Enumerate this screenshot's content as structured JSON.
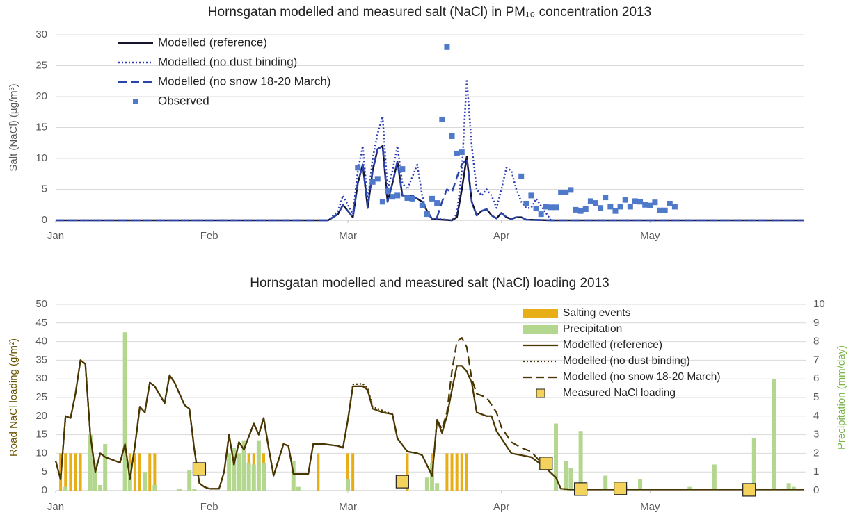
{
  "chart_data": [
    {
      "type": "line",
      "title": "Hornsgatan modelled and measured salt (NaCl) in PM₁₀ concentration 2013",
      "ylabel": "Salt (NaCl) (µg/m³)",
      "xlim": [
        0,
        151
      ],
      "xticks": [
        {
          "value": 0,
          "label": "Jan"
        },
        {
          "value": 31,
          "label": "Feb"
        },
        {
          "value": 59,
          "label": "Mar"
        },
        {
          "value": 90,
          "label": "Apr"
        },
        {
          "value": 120,
          "label": "May"
        }
      ],
      "ylim": [
        0,
        30
      ],
      "yticks": [
        0,
        5,
        10,
        15,
        20,
        25,
        30
      ],
      "grid": true,
      "legend": "upper left",
      "series": [
        {
          "name": "Modelled (reference)",
          "type": "line",
          "style": "solid",
          "color": "#14142e",
          "x": [
            0,
            55,
            57,
            58,
            60,
            61,
            62,
            63,
            64,
            65,
            66,
            67,
            68,
            69,
            70,
            71,
            72,
            73,
            74,
            75,
            76,
            80,
            81,
            82,
            83,
            84,
            85,
            86,
            87,
            88,
            89,
            90,
            91,
            92,
            93,
            94,
            95,
            100,
            151
          ],
          "values": [
            0,
            0,
            1,
            2.5,
            0.5,
            6,
            9,
            2,
            8,
            11.5,
            12,
            3,
            6,
            9.5,
            4,
            4,
            4,
            3.5,
            3,
            1.5,
            0.2,
            0,
            0.5,
            5,
            10.3,
            3,
            0.8,
            1.5,
            1.8,
            0.8,
            0.3,
            1.2,
            0.5,
            0.2,
            0.5,
            0.5,
            0.1,
            0,
            0
          ]
        },
        {
          "name": "Modelled (no dust binding)",
          "type": "line",
          "style": "dotted",
          "color": "#2f3db5",
          "x": [
            0,
            55,
            57,
            58,
            60,
            61,
            62,
            63,
            64,
            65,
            66,
            67,
            68,
            69,
            70,
            71,
            72,
            73,
            74,
            75,
            76,
            80,
            81,
            82,
            83,
            84,
            85,
            86,
            87,
            88,
            89,
            90,
            91,
            92,
            93,
            94,
            95,
            96,
            97,
            100,
            151
          ],
          "values": [
            0,
            0,
            1.5,
            4,
            1,
            8,
            12,
            3,
            10,
            14,
            16.8,
            5,
            8,
            12,
            6,
            5,
            7,
            9,
            4,
            1,
            0.3,
            0,
            1,
            8,
            22.8,
            12,
            5,
            4,
            5,
            4,
            2,
            5,
            8.5,
            8,
            5,
            3,
            2,
            2,
            3.5,
            0,
            0
          ]
        },
        {
          "name": "Modelled (no snow 18-20 March)",
          "type": "line",
          "style": "dashed",
          "color": "#2a44a8",
          "x": [
            0,
            55,
            57,
            58,
            60,
            61,
            62,
            63,
            64,
            65,
            66,
            67,
            68,
            69,
            70,
            71,
            72,
            73,
            74,
            75,
            76,
            77,
            78,
            79,
            80,
            81,
            82,
            83,
            84,
            85,
            86,
            87,
            88,
            89,
            90,
            91,
            92,
            93,
            94,
            95,
            100,
            151
          ],
          "values": [
            0,
            0,
            1,
            2.5,
            0.5,
            6,
            9,
            2,
            8,
            11.5,
            12,
            3,
            6,
            9.5,
            4,
            4,
            4,
            3.5,
            3,
            1.5,
            0.2,
            0.5,
            3,
            5,
            4.5,
            7,
            9,
            10,
            3,
            0.8,
            1.5,
            1.8,
            0.8,
            0.3,
            1.2,
            0.5,
            0.2,
            0.5,
            0.5,
            0.1,
            0,
            0
          ]
        },
        {
          "name": "Observed",
          "type": "scatter",
          "color": "#4f79c9",
          "x": [
            61,
            64,
            65,
            66,
            67,
            68,
            69,
            70,
            71,
            72,
            74,
            75,
            76,
            77,
            78,
            79,
            80,
            81,
            82,
            94,
            95,
            96,
            97,
            98,
            99,
            100,
            101,
            102,
            103,
            104,
            105,
            106,
            107,
            108,
            109,
            110,
            111,
            112,
            113,
            114,
            115,
            116,
            117,
            118,
            119,
            120,
            121,
            122,
            123,
            124,
            125
          ],
          "values": [
            8.5,
            6.2,
            6.7,
            3,
            4.7,
            3.8,
            4,
            8.3,
            3.6,
            3.5,
            2.4,
            1,
            3.5,
            2.8,
            16.3,
            28,
            13.6,
            10.8,
            11,
            7.1,
            2.7,
            4,
            1.9,
            1,
            2.2,
            2.1,
            2.1,
            4.5,
            4.5,
            4.9,
            1.7,
            1.5,
            1.8,
            3.1,
            2.8,
            2,
            3.7,
            2.2,
            1.5,
            2.2,
            3.3,
            2.2,
            3.1,
            3,
            2.5,
            2.4,
            2.9,
            1.6,
            1.6,
            2.7,
            2.2
          ]
        }
      ]
    },
    {
      "type": "combo",
      "title": "Hornsgatan modelled and measured salt (NaCl) loading 2013",
      "ylabel": "Road NaCl loading (g/m²)",
      "ylabel_color": "#6b5300",
      "y2label": "Precipitation (mm/day)",
      "y2label_color": "#7ab648",
      "xlim": [
        0,
        151
      ],
      "xticks": [
        {
          "value": 0,
          "label": "Jan"
        },
        {
          "value": 31,
          "label": "Feb"
        },
        {
          "value": 59,
          "label": "Mar"
        },
        {
          "value": 90,
          "label": "Apr"
        },
        {
          "value": 120,
          "label": "May"
        }
      ],
      "ylim": [
        0,
        50
      ],
      "yticks": [
        0,
        5,
        10,
        15,
        20,
        25,
        30,
        35,
        40,
        45,
        50
      ],
      "y2lim": [
        0,
        10
      ],
      "y2ticks": [
        0,
        1,
        2,
        3,
        4,
        5,
        6,
        7,
        8,
        9,
        10
      ],
      "grid": true,
      "legend": "upper right",
      "series": [
        {
          "name": "Salting events",
          "type": "bar",
          "color": "#e8ae17",
          "x": [
            1,
            2,
            3,
            4,
            5,
            7,
            10,
            14,
            15,
            16,
            17,
            19,
            20,
            35,
            37,
            38,
            39,
            40,
            41,
            42,
            53,
            59,
            60,
            71,
            76,
            79,
            80,
            81,
            82,
            83
          ],
          "values": [
            10,
            10,
            10,
            10,
            10,
            10,
            10,
            10,
            10,
            10,
            10,
            10,
            10,
            10,
            10,
            10,
            10,
            10,
            10,
            10,
            10,
            10,
            10,
            10,
            10,
            10,
            10,
            10,
            10,
            10
          ]
        },
        {
          "name": "Precipitation",
          "type": "bar",
          "axis": "y2",
          "color": "#b3d78f",
          "x": [
            2,
            7,
            8,
            9,
            10,
            14,
            15,
            18,
            20,
            25,
            27,
            28,
            35,
            36,
            37,
            38,
            39,
            40,
            41,
            42,
            48,
            49,
            59,
            75,
            76,
            77,
            101,
            103,
            104,
            106,
            111,
            115,
            118,
            128,
            133,
            141,
            145,
            148,
            149
          ],
          "values": [
            0.2,
            3,
            1.5,
            0.3,
            2.5,
            8.5,
            1.5,
            1,
            0.3,
            0.1,
            1.1,
            0.1,
            2,
            2.3,
            2,
            2.7,
            1.5,
            1.4,
            2.7,
            1.5,
            1.6,
            0.2,
            0.6,
            0.7,
            1.5,
            0.4,
            3.6,
            1.6,
            1.2,
            3.2,
            0.8,
            0.2,
            0.6,
            0.2,
            1.4,
            2.8,
            6,
            0.4,
            0.2
          ]
        },
        {
          "name": "Modelled (reference)",
          "type": "line",
          "style": "solid",
          "color": "#4a3600",
          "x": [
            0,
            1,
            2,
            3,
            4,
            5,
            6,
            7,
            8,
            9,
            10,
            11,
            13,
            14,
            15,
            16,
            17,
            18,
            19,
            20,
            22,
            23,
            24,
            26,
            27,
            28,
            29,
            30,
            31,
            33,
            34,
            35,
            36,
            37,
            38,
            40,
            41,
            42,
            43,
            44,
            46,
            47,
            48,
            51,
            52,
            54,
            57,
            58,
            59,
            60,
            62,
            63,
            64,
            66,
            68,
            69,
            71,
            73,
            74,
            76,
            77,
            78,
            79,
            80,
            81,
            82,
            83,
            84,
            85,
            87,
            88,
            89,
            90,
            92,
            94,
            96,
            98,
            99,
            101,
            102,
            104,
            151
          ],
          "values": [
            8,
            3,
            20,
            19.5,
            26,
            35,
            34,
            15,
            5,
            10,
            9,
            8.5,
            7.5,
            12.5,
            3,
            12,
            22.5,
            21,
            29,
            28,
            23.5,
            31,
            29,
            23,
            22,
            11,
            2,
            1,
            0.5,
            0.5,
            5,
            15,
            7,
            13,
            11,
            18,
            15,
            19.5,
            11.5,
            4,
            12.5,
            12,
            4.5,
            4.5,
            12.5,
            12.5,
            12,
            11.5,
            19,
            28,
            28,
            27,
            22,
            21,
            20.5,
            14,
            10.5,
            10,
            9.5,
            4,
            19,
            15.5,
            20,
            27,
            33.5,
            33.5,
            32,
            29,
            21,
            20,
            20,
            16,
            14,
            10,
            9.5,
            9,
            7,
            6,
            3.5,
            0.5,
            0.3,
            0.3
          ]
        },
        {
          "name": "Modelled (no dust binding)",
          "type": "line",
          "style": "dotted",
          "color": "#4a3600",
          "x": [
            0,
            1,
            2,
            3,
            4,
            5,
            6,
            7,
            8,
            9,
            10,
            11,
            13,
            14,
            15,
            16,
            17,
            18,
            19,
            20,
            22,
            23,
            24,
            26,
            27,
            28,
            29,
            30,
            31,
            33,
            34,
            35,
            36,
            37,
            38,
            40,
            41,
            42,
            43,
            44,
            46,
            47,
            48,
            51,
            52,
            54,
            57,
            58,
            59,
            60,
            62,
            63,
            64,
            66,
            68,
            69,
            71,
            73,
            74,
            76,
            77,
            78,
            79,
            80,
            81,
            82,
            83,
            84,
            85,
            87,
            88,
            89,
            90,
            92,
            94,
            96,
            98,
            99,
            101,
            102,
            104,
            151
          ],
          "values": [
            8,
            3,
            20,
            19.5,
            26,
            35,
            34,
            15,
            5,
            10,
            9,
            8.5,
            7.5,
            12.5,
            3,
            12,
            22.5,
            21,
            29,
            28,
            23.5,
            31,
            29,
            23,
            22,
            11,
            2,
            1,
            0.5,
            0.5,
            5,
            15,
            7,
            13,
            11,
            18,
            15,
            19.5,
            11.5,
            4,
            12.5,
            12,
            4.5,
            4.5,
            12.5,
            12.5,
            12,
            11.5,
            19,
            28.5,
            28.7,
            27.5,
            22.5,
            21.5,
            20.5,
            14,
            10.5,
            10,
            9.5,
            4,
            19,
            15.5,
            20,
            27,
            33.5,
            33.5,
            32,
            29,
            21,
            20,
            20,
            16,
            14,
            10,
            9.5,
            9,
            7,
            6,
            3.5,
            0.5,
            0.3,
            0.3
          ]
        },
        {
          "name": "Modelled (no snow 18-20 March)",
          "type": "line",
          "style": "dashed",
          "color": "#4a3600",
          "x": [
            0,
            1,
            2,
            3,
            4,
            5,
            6,
            7,
            8,
            9,
            10,
            11,
            13,
            14,
            15,
            16,
            17,
            18,
            19,
            20,
            22,
            23,
            24,
            26,
            27,
            28,
            29,
            30,
            31,
            33,
            34,
            35,
            36,
            37,
            38,
            40,
            41,
            42,
            43,
            44,
            46,
            47,
            48,
            51,
            52,
            54,
            57,
            58,
            59,
            60,
            62,
            63,
            64,
            66,
            68,
            69,
            71,
            73,
            74,
            76,
            77,
            78,
            79,
            80,
            81,
            82,
            83,
            84,
            85,
            87,
            88,
            89,
            90,
            92,
            94,
            96,
            98,
            99,
            101,
            102,
            104,
            151
          ],
          "values": [
            8,
            3,
            20,
            19.5,
            26,
            35,
            34,
            15,
            5,
            10,
            9,
            8.5,
            7.5,
            12.5,
            3,
            12,
            22.5,
            21,
            29,
            28,
            23.5,
            31,
            29,
            23,
            22,
            11,
            2,
            1,
            0.5,
            0.5,
            5,
            15,
            7,
            13,
            11,
            18,
            15,
            19.5,
            11.5,
            4,
            12.5,
            12,
            4.5,
            4.5,
            12.5,
            12.5,
            12,
            11.5,
            19,
            28,
            28,
            27,
            22,
            21,
            20.5,
            14,
            10.5,
            10,
            9.5,
            4,
            19,
            16.5,
            21,
            32,
            40,
            41,
            38.5,
            30,
            26,
            25,
            23,
            21,
            17,
            13,
            11.5,
            10.5,
            7.5,
            6,
            3.5,
            0.5,
            0.3,
            0.3
          ]
        },
        {
          "name": "Measured NaCl loading",
          "type": "scatter",
          "color": "#f3d35c",
          "x": [
            29,
            70,
            99,
            106,
            114,
            140
          ],
          "values": [
            5.8,
            2.4,
            7.3,
            0.4,
            0.6,
            0.2
          ]
        }
      ]
    }
  ]
}
